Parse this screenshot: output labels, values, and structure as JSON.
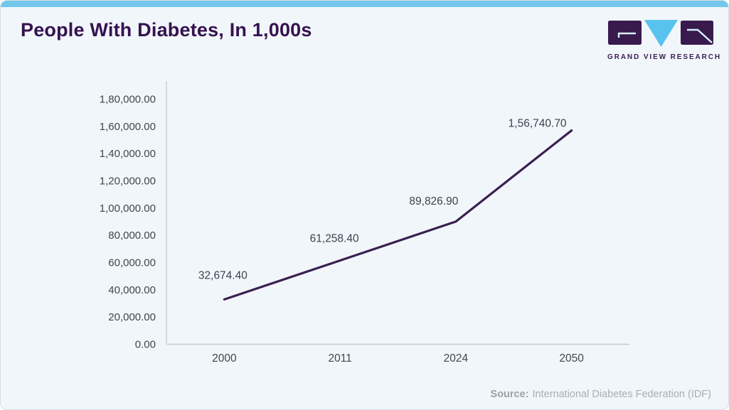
{
  "header": {
    "title": "People With Diabetes, In 1,000s"
  },
  "logo": {
    "text": "GRAND VIEW RESEARCH",
    "block_color": "#381a4d",
    "triangle_color": "#58c3ee"
  },
  "footer": {
    "source_label": "Source:",
    "source_text": "International Diabetes Federation (IDF)"
  },
  "colors": {
    "topbar": "#73c6ec",
    "card_background": "#f1f6fa",
    "title": "#36124f",
    "line": "#3b2051",
    "axis": "#c6cbd2",
    "tick_text": "#40454f"
  },
  "chart_data": {
    "type": "line",
    "title": "People With Diabetes, In 1,000s",
    "categories": [
      "2000",
      "2011",
      "2024",
      "2050"
    ],
    "values": [
      32674.4,
      61258.4,
      89826.9,
      156740.7
    ],
    "value_labels": [
      "32,674.40",
      "61,258.40",
      "89,826.90",
      "1,56,740.70"
    ],
    "xlabel": "",
    "ylabel": "",
    "ylim": [
      0,
      180000
    ],
    "y_tick_values": [
      0,
      20000,
      40000,
      60000,
      80000,
      100000,
      120000,
      140000,
      160000,
      180000
    ],
    "y_tick_labels": [
      "0.00",
      "20,000.00",
      "40,000.00",
      "60,000.00",
      "80,000.00",
      "1,00,000.00",
      "1,20,000.00",
      "1,40,000.00",
      "1,60,000.00",
      "1,80,000.00"
    ],
    "grid": false,
    "legend": "none",
    "line_color": "#3b2051"
  }
}
